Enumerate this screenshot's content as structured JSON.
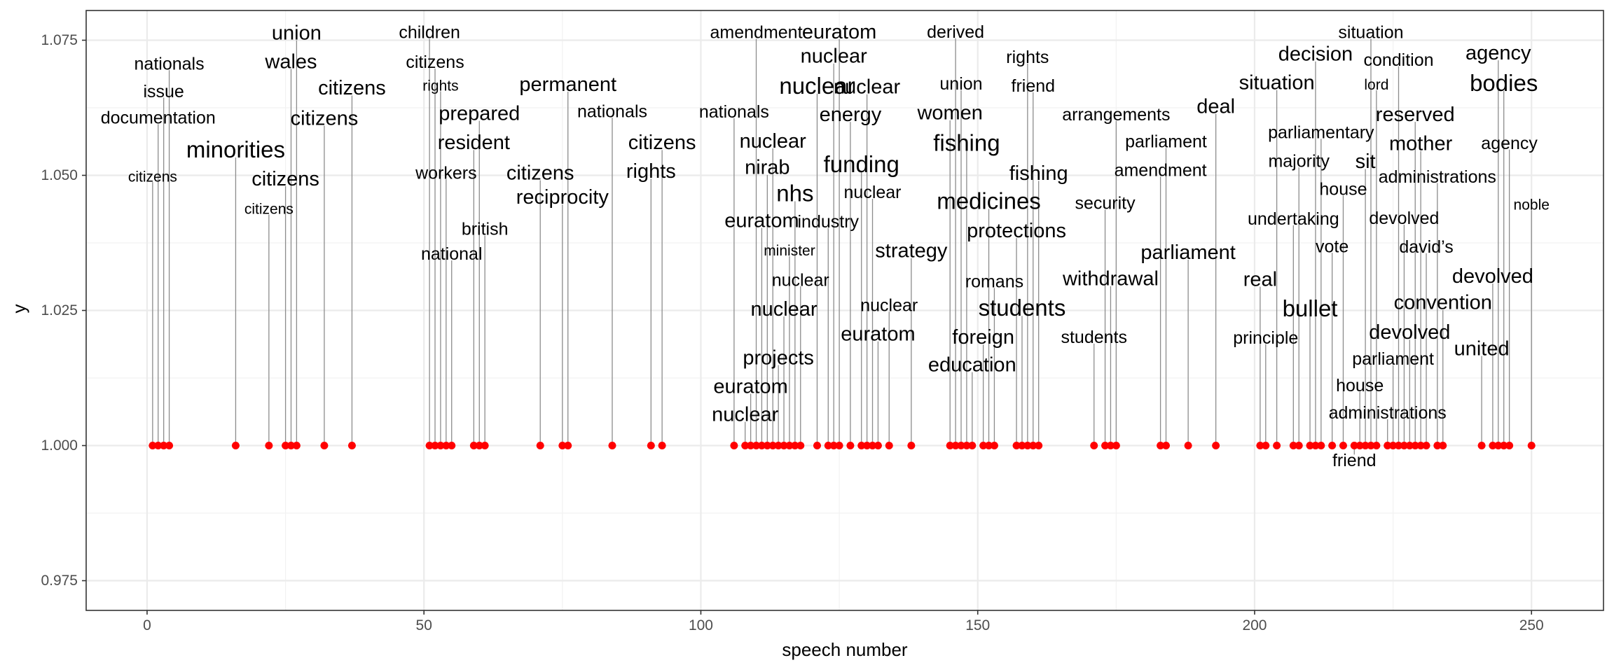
{
  "chart_data": {
    "type": "scatter",
    "title": "",
    "xlabel": "speech number",
    "ylabel": "y",
    "xlim": [
      -11,
      263
    ],
    "ylim": [
      0.9695,
      1.0805
    ],
    "x_ticks": [
      0,
      50,
      100,
      150,
      200,
      250
    ],
    "y_ticks": [
      0.975,
      1.0,
      1.025,
      1.05,
      1.075
    ],
    "y_tick_labels": [
      "0.975",
      "1.000",
      "1.025",
      "1.050",
      "1.075"
    ],
    "grid": true,
    "point_color": "#ff0000",
    "points": [
      {
        "x": 1,
        "y": 1.0,
        "label": "citizens",
        "label_y": 1.0497,
        "size": "s"
      },
      {
        "x": 2,
        "y": 1.0,
        "label": "documentation",
        "label_y": 1.0606,
        "size": "m"
      },
      {
        "x": 3,
        "y": 1.0,
        "label": "issue",
        "label_y": 1.0655,
        "size": "m"
      },
      {
        "x": 4,
        "y": 1.0,
        "label": "nationals",
        "label_y": 1.0706,
        "size": "m"
      },
      {
        "x": 16,
        "y": 1.0,
        "label": "minorities",
        "label_y": 1.0548,
        "size": "xl"
      },
      {
        "x": 22,
        "y": 1.0,
        "label": "citizens",
        "label_y": 1.0437,
        "size": "s"
      },
      {
        "x": 25,
        "y": 1.0,
        "label": "citizens",
        "label_y": 1.0493,
        "size": "l"
      },
      {
        "x": 26,
        "y": 1.0,
        "label": "wales",
        "label_y": 1.071,
        "size": "l"
      },
      {
        "x": 27,
        "y": 1.0,
        "label": "union",
        "label_y": 1.0763,
        "size": "l"
      },
      {
        "x": 32,
        "y": 1.0,
        "label": "citizens",
        "label_y": 1.0605,
        "size": "l"
      },
      {
        "x": 37,
        "y": 1.0,
        "label": "citizens",
        "label_y": 1.0661,
        "size": "l"
      },
      {
        "x": 51,
        "y": 1.0,
        "label": "children",
        "label_y": 1.0764,
        "size": "m"
      },
      {
        "x": 52,
        "y": 1.0,
        "label": "citizens",
        "label_y": 1.0709,
        "size": "m"
      },
      {
        "x": 53,
        "y": 1.0,
        "label": "rights",
        "label_y": 1.0665,
        "size": "s"
      },
      {
        "x": 54,
        "y": 1.0,
        "label": "workers",
        "label_y": 1.0504,
        "size": "m"
      },
      {
        "x": 55,
        "y": 1.0,
        "label": "national",
        "label_y": 1.0354,
        "size": "m"
      },
      {
        "x": 59,
        "y": 1.0,
        "label": "resident",
        "label_y": 1.056,
        "size": "l"
      },
      {
        "x": 60,
        "y": 1.0,
        "label": "prepared",
        "label_y": 1.0614,
        "size": "l"
      },
      {
        "x": 61,
        "y": 1.0,
        "label": "british",
        "label_y": 1.04,
        "size": "m"
      },
      {
        "x": 71,
        "y": 1.0,
        "label": "citizens",
        "label_y": 1.0504,
        "size": "l"
      },
      {
        "x": 75,
        "y": 1.0,
        "label": "reciprocity",
        "label_y": 1.0459,
        "size": "l"
      },
      {
        "x": 76,
        "y": 1.0,
        "label": "permanent",
        "label_y": 1.0668,
        "size": "l"
      },
      {
        "x": 84,
        "y": 1.0,
        "label": "nationals",
        "label_y": 1.0618,
        "size": "m"
      },
      {
        "x": 91,
        "y": 1.0,
        "label": "rights",
        "label_y": 1.0507,
        "size": "l"
      },
      {
        "x": 93,
        "y": 1.0,
        "label": "citizens",
        "label_y": 1.056,
        "size": "l"
      },
      {
        "x": 106,
        "y": 1.0,
        "label": "nationals",
        "label_y": 1.0617,
        "size": "m"
      },
      {
        "x": 108,
        "y": 1.0,
        "label": "nuclear",
        "label_y": 1.0057,
        "size": "l"
      },
      {
        "x": 109,
        "y": 1.0,
        "label": "euratom",
        "label_y": 1.0109,
        "size": "l"
      },
      {
        "x": 110,
        "y": 1.0,
        "label": "amendment",
        "label_y": 1.0764,
        "size": "m"
      },
      {
        "x": 111,
        "y": 1.0,
        "label": "euratom",
        "label_y": 1.0416,
        "size": "l"
      },
      {
        "x": 112,
        "y": 1.0,
        "label": "nirab",
        "label_y": 1.0514,
        "size": "l"
      },
      {
        "x": 113,
        "y": 1.0,
        "label": "nuclear",
        "label_y": 1.0563,
        "size": "l"
      },
      {
        "x": 114,
        "y": 1.0,
        "label": "projects",
        "label_y": 1.0162,
        "size": "l"
      },
      {
        "x": 115,
        "y": 1.0,
        "label": "nuclear",
        "label_y": 1.0252,
        "size": "l"
      },
      {
        "x": 116,
        "y": 1.0,
        "label": "minister",
        "label_y": 1.036,
        "size": "s"
      },
      {
        "x": 117,
        "y": 1.0,
        "label": "nhs",
        "label_y": 1.0467,
        "size": "xl"
      },
      {
        "x": 118,
        "y": 1.0,
        "label": "nuclear",
        "label_y": 1.0306,
        "size": "m"
      },
      {
        "x": 121,
        "y": 1.0,
        "label": "nuclear",
        "label_y": 1.0666,
        "size": "xl"
      },
      {
        "x": 123,
        "y": 1.0,
        "label": "industry",
        "label_y": 1.0414,
        "size": "m"
      },
      {
        "x": 124,
        "y": 1.0,
        "label": "nuclear",
        "label_y": 1.072,
        "size": "l"
      },
      {
        "x": 125,
        "y": 1.0,
        "label": "euratom",
        "label_y": 1.0765,
        "size": "l"
      },
      {
        "x": 127,
        "y": 1.0,
        "label": "energy",
        "label_y": 1.0612,
        "size": "l"
      },
      {
        "x": 129,
        "y": 1.0,
        "label": "funding",
        "label_y": 1.0521,
        "size": "xl"
      },
      {
        "x": 130,
        "y": 1.0,
        "label": "nuclear",
        "label_y": 1.0663,
        "size": "l"
      },
      {
        "x": 131,
        "y": 1.0,
        "label": "nuclear",
        "label_y": 1.0468,
        "size": "m"
      },
      {
        "x": 132,
        "y": 1.0,
        "label": "euratom",
        "label_y": 1.0206,
        "size": "l"
      },
      {
        "x": 134,
        "y": 1.0,
        "label": "nuclear",
        "label_y": 1.0259,
        "size": "m"
      },
      {
        "x": 138,
        "y": 1.0,
        "label": "strategy",
        "label_y": 1.036,
        "size": "l"
      },
      {
        "x": 145,
        "y": 1.0,
        "label": "women",
        "label_y": 1.0615,
        "size": "l"
      },
      {
        "x": 146,
        "y": 1.0,
        "label": "derived",
        "label_y": 1.0765,
        "size": "m"
      },
      {
        "x": 147,
        "y": 1.0,
        "label": "union",
        "label_y": 1.0669,
        "size": "m"
      },
      {
        "x": 148,
        "y": 1.0,
        "label": "fishing",
        "label_y": 1.056,
        "size": "xl"
      },
      {
        "x": 149,
        "y": 1.0,
        "label": "education",
        "label_y": 1.0149,
        "size": "l"
      },
      {
        "x": 151,
        "y": 1.0,
        "label": "foreign",
        "label_y": 1.02,
        "size": "l"
      },
      {
        "x": 152,
        "y": 1.0,
        "label": "medicines",
        "label_y": 1.0453,
        "size": "xl"
      },
      {
        "x": 153,
        "y": 1.0,
        "label": "romans",
        "label_y": 1.0303,
        "size": "m"
      },
      {
        "x": 157,
        "y": 1.0,
        "label": "protections",
        "label_y": 1.0397,
        "size": "l"
      },
      {
        "x": 158,
        "y": 1.0,
        "label": "students",
        "label_y": 1.0255,
        "size": "xl"
      },
      {
        "x": 159,
        "y": 1.0,
        "label": "rights",
        "label_y": 1.0718,
        "size": "m"
      },
      {
        "x": 160,
        "y": 1.0,
        "label": "friend",
        "label_y": 1.0665,
        "size": "m"
      },
      {
        "x": 161,
        "y": 1.0,
        "label": "fishing",
        "label_y": 1.0503,
        "size": "l"
      },
      {
        "x": 171,
        "y": 1.0,
        "label": "students",
        "label_y": 1.02,
        "size": "m"
      },
      {
        "x": 173,
        "y": 1.0,
        "label": "security",
        "label_y": 1.0448,
        "size": "m"
      },
      {
        "x": 174,
        "y": 1.0,
        "label": "withdrawal",
        "label_y": 1.0308,
        "size": "l"
      },
      {
        "x": 175,
        "y": 1.0,
        "label": "arrangements",
        "label_y": 1.0612,
        "size": "m"
      },
      {
        "x": 183,
        "y": 1.0,
        "label": "amendment",
        "label_y": 1.0509,
        "size": "m"
      },
      {
        "x": 184,
        "y": 1.0,
        "label": "parliament",
        "label_y": 1.0562,
        "size": "m"
      },
      {
        "x": 188,
        "y": 1.0,
        "label": "parliament",
        "label_y": 1.0357,
        "size": "l"
      },
      {
        "x": 193,
        "y": 1.0,
        "label": "deal",
        "label_y": 1.0627,
        "size": "l"
      },
      {
        "x": 201,
        "y": 1.0,
        "label": "real",
        "label_y": 1.0307,
        "size": "l"
      },
      {
        "x": 202,
        "y": 1.0,
        "label": "principle",
        "label_y": 1.0199,
        "size": "m"
      },
      {
        "x": 204,
        "y": 1.0,
        "label": "situation",
        "label_y": 1.0671,
        "size": "l"
      },
      {
        "x": 207,
        "y": 1.0,
        "label": "undertaking",
        "label_y": 1.0419,
        "size": "m"
      },
      {
        "x": 208,
        "y": 1.0,
        "label": "majority",
        "label_y": 1.0526,
        "size": "m"
      },
      {
        "x": 210,
        "y": 1.0,
        "label": "bullet",
        "label_y": 1.0254,
        "size": "xl"
      },
      {
        "x": 211,
        "y": 1.0,
        "label": "decision",
        "label_y": 1.0724,
        "size": "l"
      },
      {
        "x": 212,
        "y": 1.0,
        "label": "parliamentary",
        "label_y": 1.0579,
        "size": "m"
      },
      {
        "x": 214,
        "y": 1.0,
        "label": "vote",
        "label_y": 1.0368,
        "size": "m"
      },
      {
        "x": 216,
        "y": 1.0,
        "label": "house",
        "label_y": 1.0474,
        "size": "m"
      },
      {
        "x": 218,
        "y": 1.0,
        "label": "friend",
        "label_y": 0.9972,
        "size": "m"
      },
      {
        "x": 219,
        "y": 1.0,
        "label": "house",
        "label_y": 1.0111,
        "size": "m"
      },
      {
        "x": 220,
        "y": 1.0,
        "label": "sit",
        "label_y": 1.0525,
        "size": "l"
      },
      {
        "x": 221,
        "y": 1.0,
        "label": "situation",
        "label_y": 1.0764,
        "size": "m"
      },
      {
        "x": 222,
        "y": 1.0,
        "label": "lord",
        "label_y": 1.0667,
        "size": "s"
      },
      {
        "x": 224,
        "y": 1.0,
        "label": "administrations",
        "label_y": 1.006,
        "size": "m"
      },
      {
        "x": 225,
        "y": 1.0,
        "label": "parliament",
        "label_y": 1.016,
        "size": "m"
      },
      {
        "x": 226,
        "y": 1.0,
        "label": "condition",
        "label_y": 1.0713,
        "size": "m"
      },
      {
        "x": 227,
        "y": 1.0,
        "label": "devolved",
        "label_y": 1.042,
        "size": "m"
      },
      {
        "x": 228,
        "y": 1.0,
        "label": "devolved",
        "label_y": 1.0209,
        "size": "l"
      },
      {
        "x": 229,
        "y": 1.0,
        "label": "reserved",
        "label_y": 1.0612,
        "size": "l"
      },
      {
        "x": 230,
        "y": 1.0,
        "label": "mother",
        "label_y": 1.0558,
        "size": "l"
      },
      {
        "x": 231,
        "y": 1.0,
        "label": "david’s",
        "label_y": 1.0367,
        "size": "m"
      },
      {
        "x": 233,
        "y": 1.0,
        "label": "administrations",
        "label_y": 1.0497,
        "size": "m"
      },
      {
        "x": 234,
        "y": 1.0,
        "label": "convention",
        "label_y": 1.0264,
        "size": "l"
      },
      {
        "x": 241,
        "y": 1.0,
        "label": "united",
        "label_y": 1.0179,
        "size": "l"
      },
      {
        "x": 243,
        "y": 1.0,
        "label": "devolved",
        "label_y": 1.0313,
        "size": "l"
      },
      {
        "x": 244,
        "y": 1.0,
        "label": "agency",
        "label_y": 1.0726,
        "size": "l"
      },
      {
        "x": 245,
        "y": 1.0,
        "label": "bodies",
        "label_y": 1.0671,
        "size": "xl"
      },
      {
        "x": 246,
        "y": 1.0,
        "label": "agency",
        "label_y": 1.0559,
        "size": "m"
      },
      {
        "x": 250,
        "y": 1.0,
        "label": "noble",
        "label_y": 1.0445,
        "size": "s"
      }
    ]
  }
}
